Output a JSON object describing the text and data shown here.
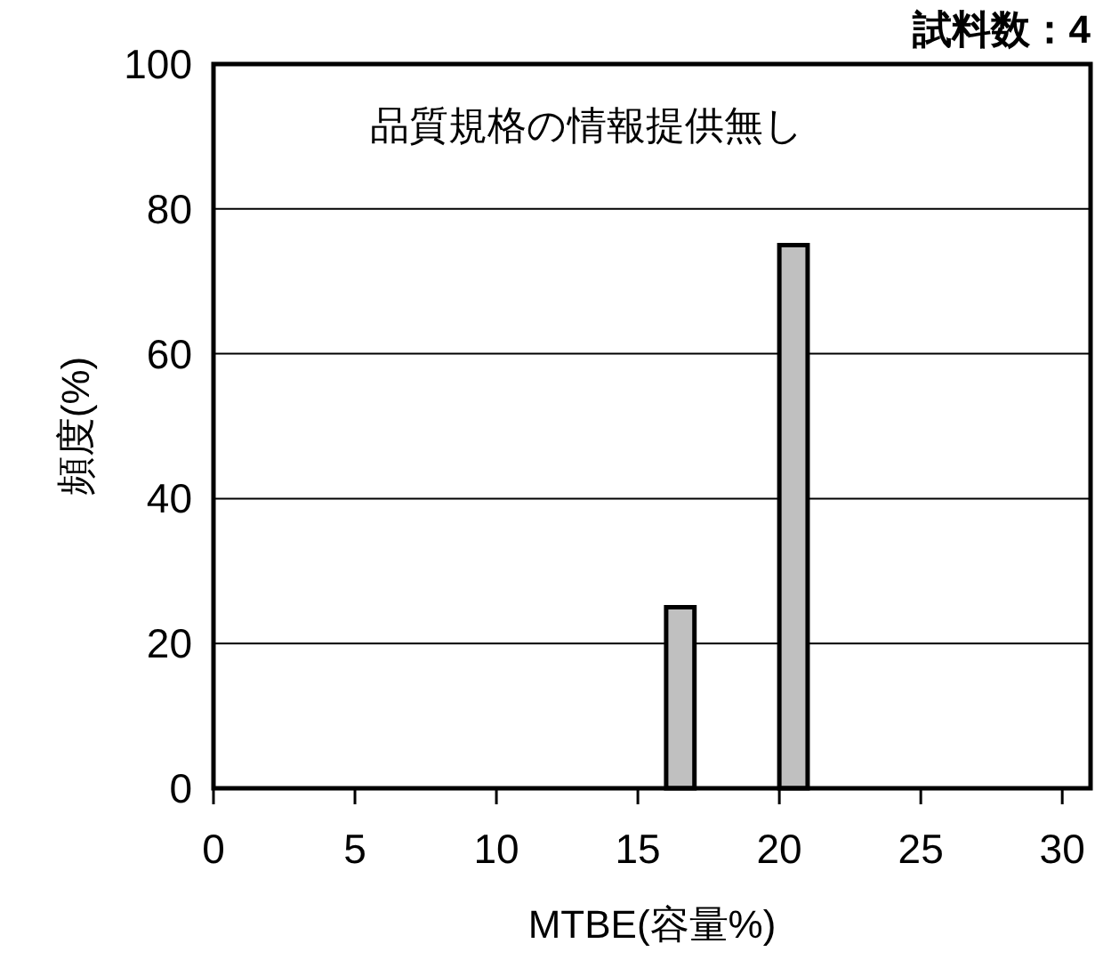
{
  "chart_data": {
    "type": "histogram",
    "xlabel": "MTBE(容量%)",
    "ylabel": "頻度(%)",
    "annotations": [
      "試料数：4",
      "品質規格の情報提供無し"
    ],
    "bins": [
      16,
      17,
      20,
      21
    ],
    "values": [
      25,
      0,
      75
    ],
    "color": "#c0c0c0",
    "xlim": [
      0,
      31
    ],
    "xticks": [
      0,
      5,
      10,
      15,
      20,
      25,
      30
    ],
    "ylim": [
      0,
      100
    ],
    "yticks": [
      0,
      20,
      40,
      60,
      80,
      100
    ],
    "grid": "y"
  }
}
